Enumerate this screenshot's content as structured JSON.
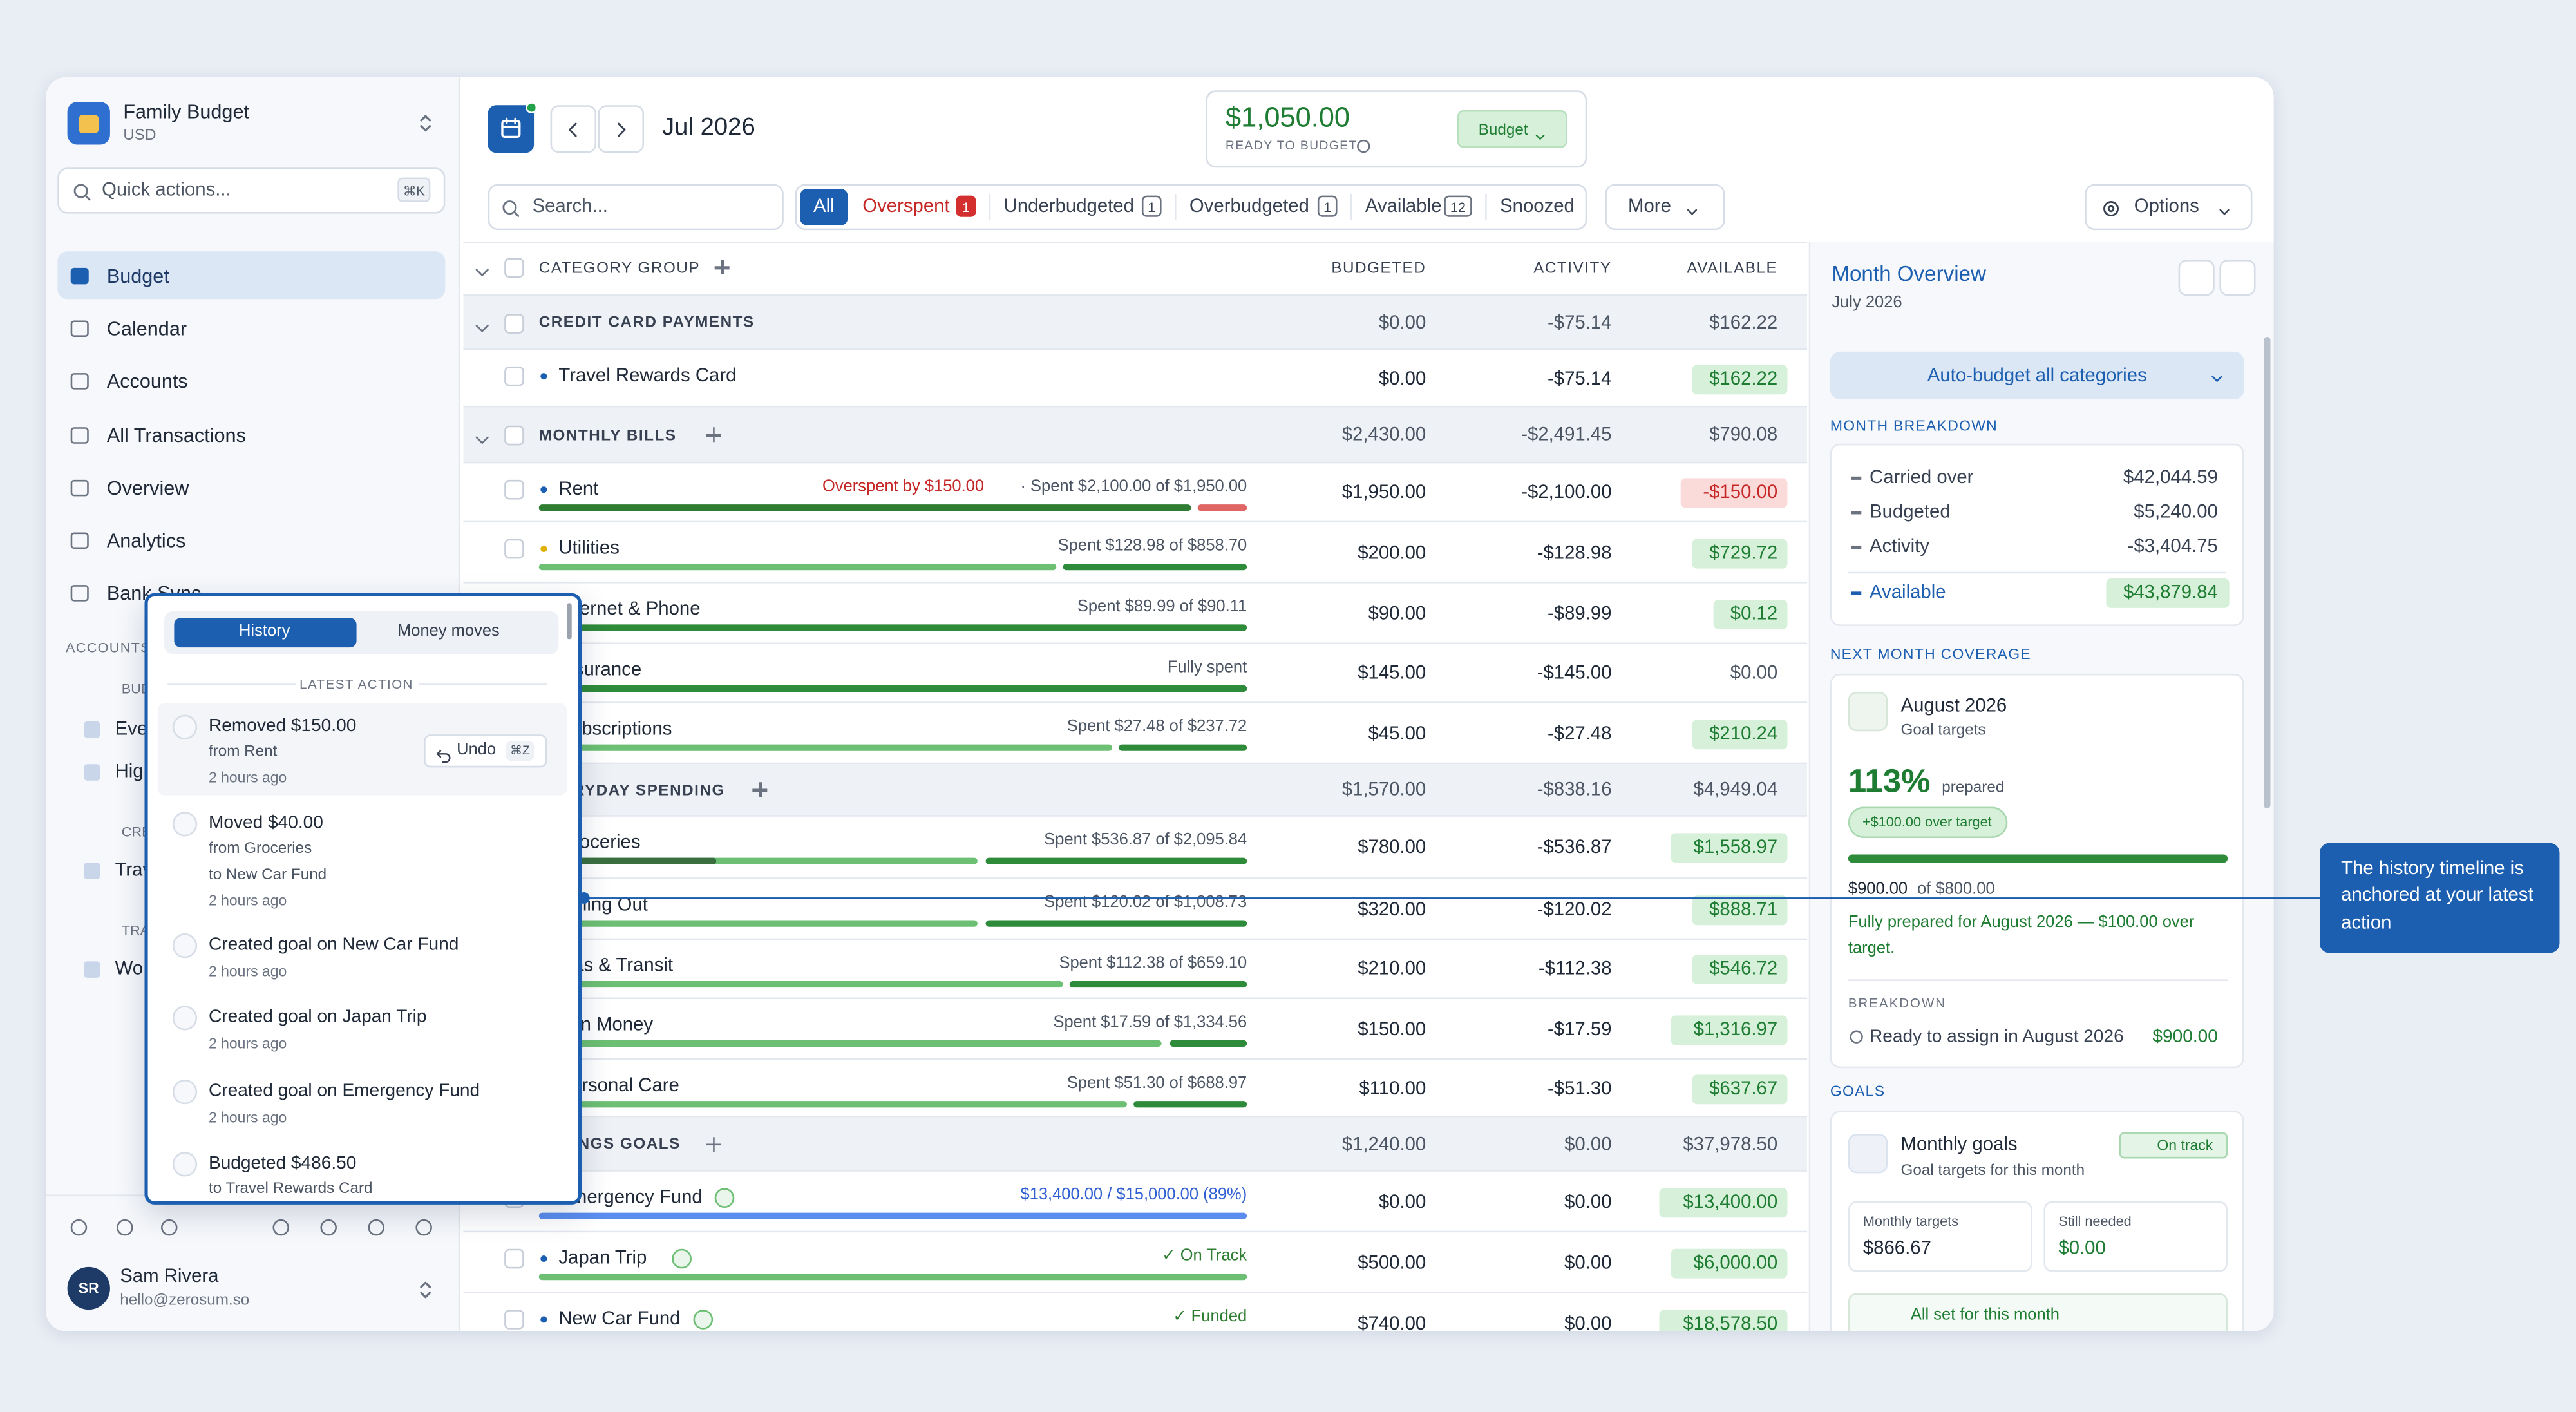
{
  "sidebar": {
    "workspace": "Family Budget",
    "currency": "USD",
    "quick_actions": "Quick actions...",
    "quick_shortcut": "⌘K",
    "nav": [
      "Budget",
      "Calendar",
      "Accounts",
      "All Transactions",
      "Overview",
      "Analytics",
      "Bank Sync"
    ],
    "accounts_heading": "ACCOUNTS",
    "account_groups": [
      {
        "label": "BUD",
        "items": [
          "Ever",
          "High"
        ]
      },
      {
        "label": "CRE",
        "items": [
          "Trav"
        ]
      },
      {
        "label": "TRA",
        "items": [
          "Wo"
        ]
      }
    ],
    "user": {
      "initials": "SR",
      "name": "Sam Rivera",
      "email": "hello@zerosum.so"
    }
  },
  "header": {
    "month": "Jul 2026",
    "ready_amount": "$1,050.00",
    "ready_label": "READY TO BUDGET",
    "budget_button": "Budget"
  },
  "filters": {
    "search": "Search...",
    "tabs": [
      {
        "label": "All"
      },
      {
        "label": "Overspent",
        "count": 1
      },
      {
        "label": "Underbudgeted",
        "count": 1
      },
      {
        "label": "Overbudgeted",
        "count": 1
      },
      {
        "label": "Available",
        "count": 12
      },
      {
        "label": "Snoozed"
      }
    ],
    "more": "More",
    "options": "Options"
  },
  "table": {
    "columns": [
      "CATEGORY GROUP",
      "BUDGETED",
      "ACTIVITY",
      "AVAILABLE"
    ],
    "rows": [
      {
        "kind": "group",
        "name": "CREDIT CARD PAYMENTS",
        "budgeted": "$0.00",
        "activity": "-$75.14",
        "available": "$162.22"
      },
      {
        "kind": "category",
        "name": "Travel Rewards Card",
        "dot": "#1c5fb0",
        "budgeted": "$0.00",
        "activity": "-$75.14",
        "available": "$162.22",
        "status": "positive"
      },
      {
        "kind": "group",
        "name": "MONTHLY BILLS",
        "budgeted": "$2,430.00",
        "activity": "-$2,491.45",
        "available": "$790.08"
      },
      {
        "kind": "category",
        "name": "Rent",
        "dot": "#1c5fb0",
        "note_alert": "Overspent by $150.00",
        "note": "· Spent $2,100.00 of $1,950.00",
        "budgeted": "$1,950.00",
        "activity": "-$2,100.00",
        "available": "-$150.00",
        "status": "negative"
      },
      {
        "kind": "category",
        "name": "Utilities",
        "dot": "#e0b000",
        "note": "Spent $128.98 of $858.70",
        "budgeted": "$200.00",
        "activity": "-$128.98",
        "available": "$729.72",
        "status": "positive"
      },
      {
        "kind": "category",
        "name": "Internet & Phone",
        "dot": "#1c5fb0",
        "note": "Spent $89.99 of $90.11",
        "budgeted": "$90.00",
        "activity": "-$89.99",
        "available": "$0.12",
        "status": "positive"
      },
      {
        "kind": "category",
        "name": "Insurance",
        "dot": "#1c5fb0",
        "note": "Fully spent",
        "budgeted": "$145.00",
        "activity": "-$145.00",
        "available": "$0.00",
        "status": "neutral"
      },
      {
        "kind": "category",
        "name": "Subscriptions",
        "dot": "#1c5fb0",
        "note": "Spent $27.48 of $237.72",
        "budgeted": "$45.00",
        "activity": "-$27.48",
        "available": "$210.24",
        "status": "positive"
      },
      {
        "kind": "group",
        "name": "EVERYDAY SPENDING",
        "budgeted": "$1,570.00",
        "activity": "-$838.16",
        "available": "$4,949.04"
      },
      {
        "kind": "category",
        "name": "Groceries",
        "dot": "#1c5fb0",
        "note": "Spent $536.87 of $2,095.84",
        "budgeted": "$780.00",
        "activity": "-$536.87",
        "available": "$1,558.97",
        "status": "positive"
      },
      {
        "kind": "category",
        "name": "Dining Out",
        "dot": "#1c5fb0",
        "note": "Spent $120.02 of $1,008.73",
        "budgeted": "$320.00",
        "activity": "-$120.02",
        "available": "$888.71",
        "status": "positive"
      },
      {
        "kind": "category",
        "name": "Gas & Transit",
        "dot": "#1c5fb0",
        "note": "Spent $112.38 of $659.10",
        "budgeted": "$210.00",
        "activity": "-$112.38",
        "available": "$546.72",
        "status": "positive"
      },
      {
        "kind": "category",
        "name": "Fun Money",
        "dot": "#1c5fb0",
        "note": "Spent $17.59 of $1,334.56",
        "budgeted": "$150.00",
        "activity": "-$17.59",
        "available": "$1,316.97",
        "status": "positive"
      },
      {
        "kind": "category",
        "name": "Personal Care",
        "dot": "#1c5fb0",
        "note": "Spent $51.30 of $688.97",
        "budgeted": "$110.00",
        "activity": "-$51.30",
        "available": "$637.67",
        "status": "positive"
      },
      {
        "kind": "group",
        "name": "SAVINGS GOALS",
        "budgeted": "$1,240.00",
        "activity": "$0.00",
        "available": "$37,978.50"
      },
      {
        "kind": "category",
        "name": "Emergency Fund",
        "goal": true,
        "note": "$13,400.00 / $15,000.00 (89%)",
        "note_color": "#2f5fd0",
        "budgeted": "$0.00",
        "activity": "$0.00",
        "available": "$13,400.00",
        "status": "positive"
      },
      {
        "kind": "category",
        "name": "Japan Trip",
        "dot": "#1c5fb0",
        "goal": true,
        "note": "✓ On Track",
        "note_color": "#2e7d32",
        "budgeted": "$500.00",
        "activity": "$0.00",
        "available": "$6,000.00",
        "status": "positive"
      },
      {
        "kind": "category",
        "name": "New Car Fund",
        "dot": "#1c5fb0",
        "goal": true,
        "note": "✓ Funded",
        "note_color": "#2e7d32",
        "budgeted": "$740.00",
        "activity": "$0.00",
        "available": "$18,578.50",
        "status": "positive"
      }
    ]
  },
  "overview": {
    "title": "Month Overview",
    "subtitle": "July 2026",
    "auto_budget": "Auto-budget all categories",
    "breakdown_heading": "MONTH BREAKDOWN",
    "breakdown": [
      {
        "label": "Carried over",
        "value": "$42,044.59"
      },
      {
        "label": "Budgeted",
        "value": "$5,240.00"
      },
      {
        "label": "Activity",
        "value": "-$3,404.75"
      },
      {
        "label": "Available",
        "value": "$43,879.84"
      }
    ],
    "coverage_heading": "NEXT MONTH COVERAGE",
    "coverage": {
      "month": "August 2026",
      "sub": "Goal targets",
      "percent": "113%",
      "percent_label": "prepared",
      "over_pill": "+$100.00 over target",
      "amount": "$900.00",
      "amount_of": "of $800.00",
      "message": "Fully prepared for August 2026 — $100.00 over target.",
      "breakdown_label": "BREAKDOWN",
      "ready_label": "Ready to assign in August 2026",
      "ready_value": "$900.00"
    },
    "goals_heading": "GOALS",
    "goals": {
      "title": "Monthly goals",
      "status": "On track",
      "sub": "Goal targets for this month",
      "cards": [
        {
          "label": "Monthly targets",
          "value": "$866.67"
        },
        {
          "label": "Still needed",
          "value": "$0.00"
        }
      ],
      "all_set": "All set for this month"
    }
  },
  "history": {
    "tabs": [
      "History",
      "Money moves"
    ],
    "heading": "LATEST ACTION",
    "undo": "Undo",
    "undo_shortcut": "⌘Z",
    "items": [
      {
        "title": "Removed $150.00",
        "lines": [
          "from Rent"
        ],
        "time": "2 hours ago"
      },
      {
        "title": "Moved $40.00",
        "lines": [
          "from Groceries",
          "to New Car Fund"
        ],
        "time": "2 hours ago"
      },
      {
        "title": "Created goal on New Car Fund",
        "time": "2 hours ago"
      },
      {
        "title": "Created goal on Japan Trip",
        "time": "2 hours ago"
      },
      {
        "title": "Created goal on Emergency Fund",
        "time": "2 hours ago"
      },
      {
        "title": "Budgeted $486.50",
        "lines": [
          "to Travel Rewards Card"
        ]
      }
    ]
  },
  "callout": "The history timeline is anchored at your latest action"
}
